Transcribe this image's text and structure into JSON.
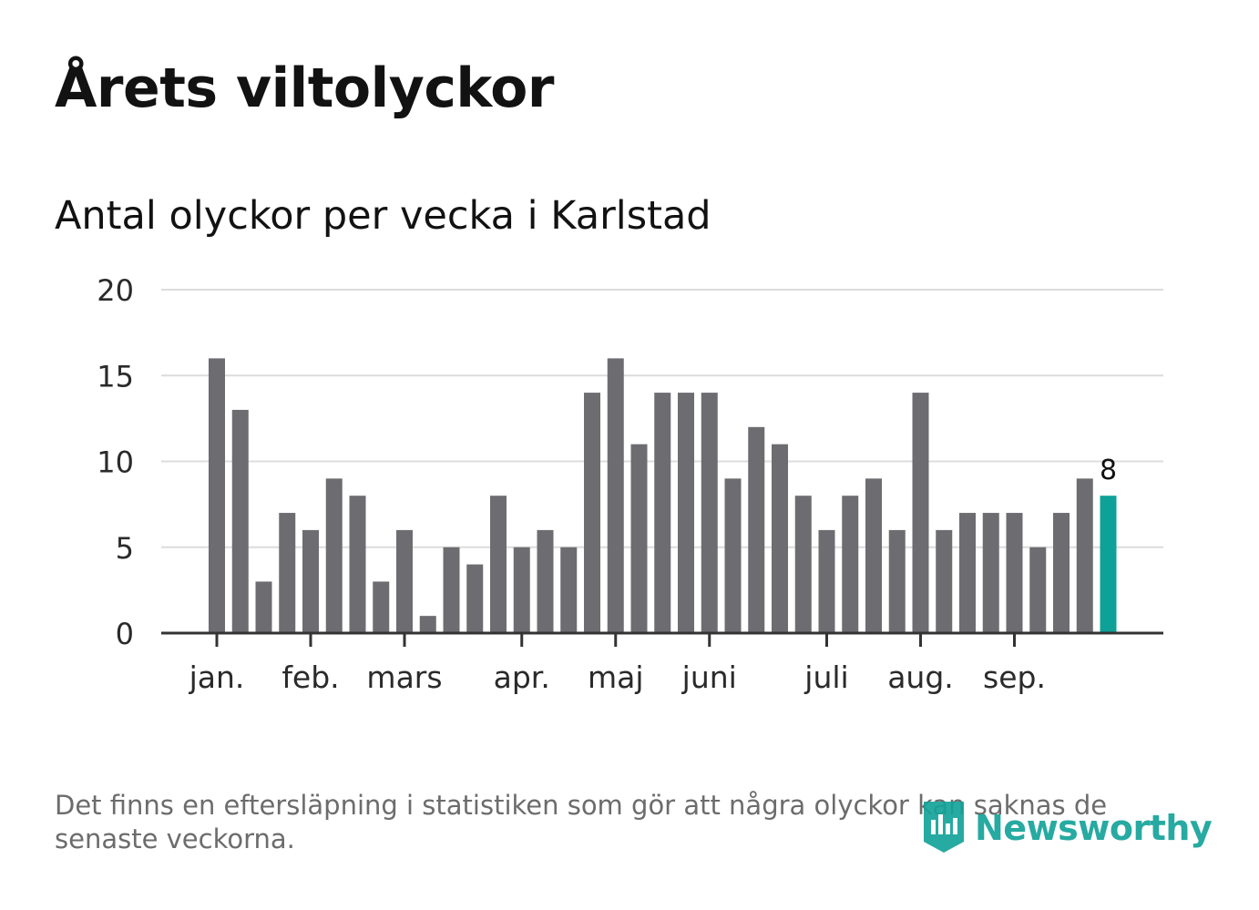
{
  "title": "Årets viltolyckor",
  "subtitle": "Antal olyckor per vecka i Karlstad",
  "footnote": "Det finns en eftersläpning i statistiken som gör att några olyckor kan saknas de senaste veckorna.",
  "logo": {
    "text": "Newsworthy",
    "icon": "newsworthy-logo-icon"
  },
  "colors": {
    "bar": "#6d6c71",
    "highlight": "#0da197",
    "grid": "#dcdcdc",
    "axis": "#333333",
    "text": "#1a1a1a",
    "logo": "#14a39a"
  },
  "chart_data": {
    "type": "bar",
    "title": "Årets viltolyckor",
    "subtitle": "Antal olyckor per vecka i Karlstad",
    "xlabel": "",
    "ylabel": "",
    "ylim": [
      0,
      20
    ],
    "y_ticks": [
      "0",
      "5",
      "10",
      "15",
      "20"
    ],
    "grid": true,
    "values": [
      16,
      13,
      3,
      7,
      6,
      9,
      8,
      3,
      6,
      1,
      5,
      4,
      8,
      5,
      6,
      5,
      14,
      16,
      11,
      14,
      14,
      14,
      9,
      12,
      11,
      8,
      6,
      8,
      9,
      6,
      14,
      6,
      7,
      7,
      7,
      5,
      7,
      9,
      8
    ],
    "highlight_index": 38,
    "highlight_label": "8",
    "month_labels": [
      {
        "label": "jan.",
        "bar_index": 0
      },
      {
        "label": "feb.",
        "bar_index": 4
      },
      {
        "label": "mars",
        "bar_index": 8
      },
      {
        "label": "apr.",
        "bar_index": 13
      },
      {
        "label": "maj",
        "bar_index": 17
      },
      {
        "label": "juni",
        "bar_index": 21
      },
      {
        "label": "juli",
        "bar_index": 26
      },
      {
        "label": "aug.",
        "bar_index": 30
      },
      {
        "label": "sep.",
        "bar_index": 34
      }
    ]
  }
}
